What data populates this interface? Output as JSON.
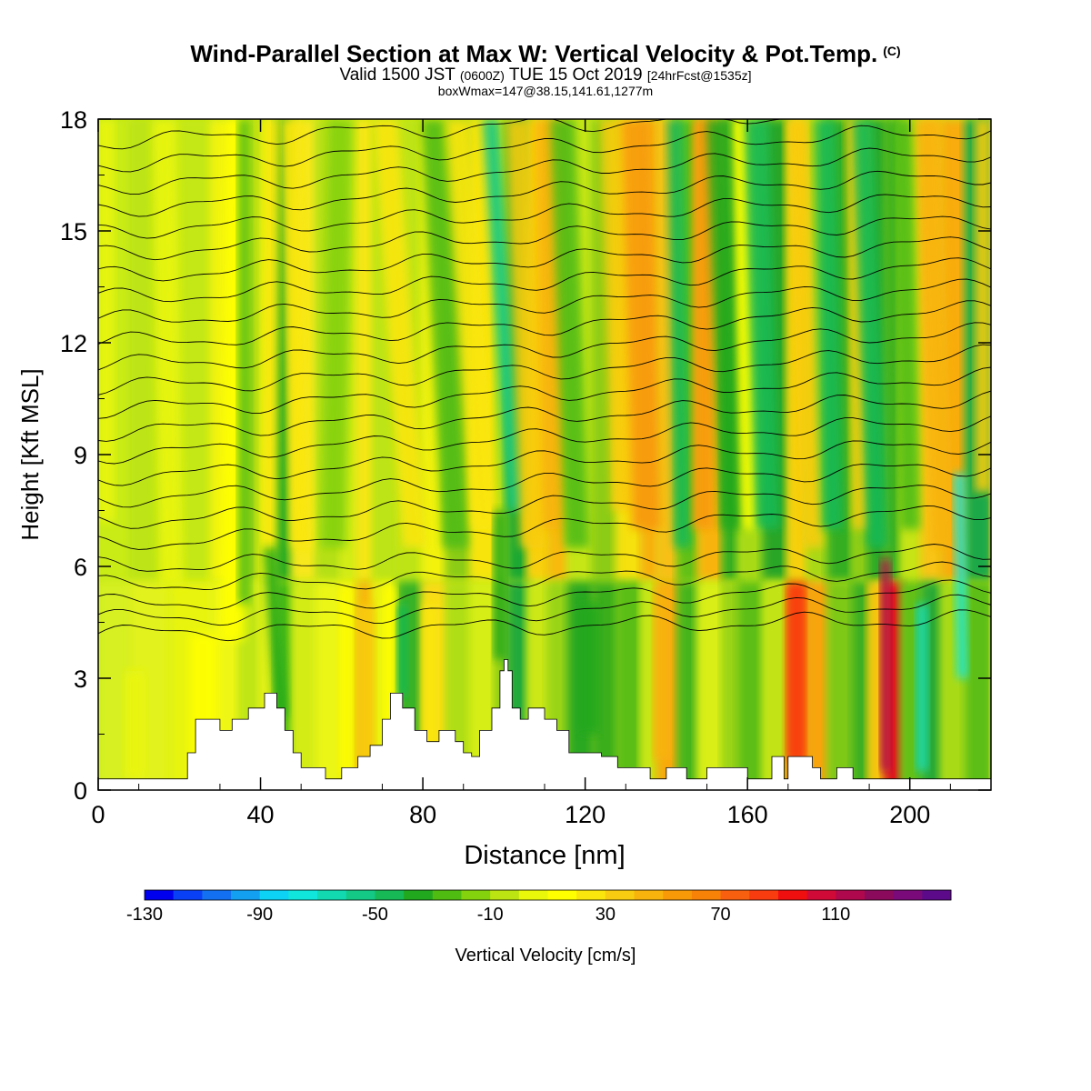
{
  "title": {
    "main": "Wind-Parallel Section at Max W: Vertical Velocity & Pot.Temp.",
    "copyright": "(C)",
    "valid_a": "Valid 1500 JST",
    "valid_b": "(0600Z)",
    "valid_c": "TUE 15 Oct 2019",
    "valid_d": "[24hrFcst@1535z]",
    "box_info": "boxWmax=147@38.15,141.61,1277m"
  },
  "chart_data": {
    "type": "heatmap",
    "xlabel": "Distance [nm]",
    "ylabel": "Height [Kft MSL]",
    "xlim": [
      0,
      220
    ],
    "ylim": [
      0,
      18
    ],
    "x_ticks": [
      "0",
      "40",
      "80",
      "120",
      "160",
      "200"
    ],
    "y_ticks": [
      "0",
      "3",
      "6",
      "9",
      "12",
      "15",
      "18"
    ],
    "colorbar": {
      "label": "Vertical Velocity [cm/s]",
      "tick_labels": [
        "-130",
        "-90",
        "-50",
        "-10",
        "30",
        "70",
        "110"
      ],
      "bins": [
        "#0000ee",
        "#0a40f5",
        "#1370f0",
        "#14a0f0",
        "#0dd2f5",
        "#10e6dc",
        "#12d9b0",
        "#14c985",
        "#16b955",
        "#22a81e",
        "#4fbc12",
        "#84d20e",
        "#bbe412",
        "#eaf60a",
        "#ffff00",
        "#fae60c",
        "#f8cc10",
        "#f8b40c",
        "#f89a08",
        "#f88208",
        "#f86010",
        "#f83c10",
        "#f00f0f",
        "#d00a37",
        "#b0084c",
        "#8c0a5c",
        "#7a0a7a",
        "#5c0a8a"
      ]
    },
    "columns": [
      {
        "x": 0,
        "bg": "#c9ec14",
        "bgs": "#d6f020"
      },
      {
        "x": 8,
        "bg": "#bce414",
        "bgs": "#e2f21a"
      },
      {
        "x": 18,
        "bg": "#c4e816",
        "bgs": "#e8f410"
      },
      {
        "x": 28,
        "bg": "#f2f408",
        "bgs": "#eef612"
      },
      {
        "x": 35,
        "bg": "#9fd412",
        "bgs": "#c0e614"
      },
      {
        "x": 40,
        "bg": "#e8f210",
        "bgs": "#e6f212"
      },
      {
        "x": 44,
        "bg": "#32ad22",
        "bgs": "#4cbc18"
      },
      {
        "x": 48,
        "bg": "#f6e81a",
        "bgs": "#d4ec16"
      },
      {
        "x": 54,
        "bg": "#b6e014",
        "bgs": "#ecf614"
      },
      {
        "x": 60,
        "bg": "#d4ec14",
        "bgs": "#f0f010"
      },
      {
        "x": 64,
        "bg": "#f6e612",
        "bgs": "#f8b80e"
      },
      {
        "x": 68,
        "bg": "#bce414",
        "bgs": "#eef410"
      },
      {
        "x": 74,
        "bg": "#bee414",
        "bgs": "#38b228"
      },
      {
        "x": 80,
        "bg": "#f2f20c",
        "bgs": "#f8dc12"
      },
      {
        "x": 86,
        "bg": "#8ccc14",
        "bgs": "#b0de14"
      },
      {
        "x": 92,
        "bg": "#f8e40e",
        "bgs": "#d6ee14"
      },
      {
        "x": 98,
        "bg": "#b8e014",
        "bgs": "#8ccc14"
      },
      {
        "x": 101,
        "bg": "#1ca832",
        "bgs": "#22aa3a"
      },
      {
        "x": 106,
        "bg": "#f8d010",
        "bgs": "#cce814"
      },
      {
        "x": 111,
        "bg": "#f8ba10",
        "bgs": "#9ad414"
      },
      {
        "x": 116,
        "bg": "#c6e614",
        "bgs": "#2aa824"
      },
      {
        "x": 122,
        "bg": "#8ccc14",
        "bgs": "#3aae1e"
      },
      {
        "x": 128,
        "bg": "#f6e010",
        "bgs": "#5abe16"
      },
      {
        "x": 134,
        "bg": "#f8b00c",
        "bgs": "#c8e614"
      },
      {
        "x": 138,
        "bg": "#f8c012",
        "bgs": "#f8a80c"
      },
      {
        "x": 143,
        "bg": "#62c018",
        "bgs": "#46b41c"
      },
      {
        "x": 148,
        "bg": "#f8b410",
        "bgs": "#d8ee14"
      },
      {
        "x": 154,
        "bg": "#34ae24",
        "bgs": "#9ad414"
      },
      {
        "x": 158,
        "bg": "#a8da14",
        "bgs": "#5cbe16"
      },
      {
        "x": 164,
        "bg": "#2aa628",
        "bgs": "#c2e414"
      },
      {
        "x": 170,
        "bg": "#f6d010",
        "bgs": "#f85a10"
      },
      {
        "x": 175,
        "bg": "#a8d814",
        "bgs": "#f8a40c"
      },
      {
        "x": 180,
        "bg": "#34ae24",
        "bgs": "#7ec814"
      },
      {
        "x": 186,
        "bg": "#8ccc14",
        "bgs": "#3aaf20"
      },
      {
        "x": 190,
        "bg": "#2aa828",
        "bgs": "#f6c410"
      },
      {
        "x": 194,
        "bg": "#3cb020",
        "bgs": "#e0141a"
      },
      {
        "x": 198,
        "bg": "#c6e414",
        "bgs": "#62c018"
      },
      {
        "x": 203,
        "bg": "#f8c412",
        "bgs": "#2aaa34"
      },
      {
        "x": 208,
        "bg": "#f8ac0c",
        "bgs": "#a8da14"
      },
      {
        "x": 214,
        "bg": "#1ea848",
        "bgs": "#5cbe16"
      },
      {
        "x": 220,
        "bg": "#f8c012",
        "bgs": "#c8e614"
      }
    ],
    "features": [
      {
        "x": 2,
        "y0": 7.2,
        "y1": 18,
        "x0": 2,
        "w": 4,
        "v": 2
      },
      {
        "x": 9,
        "y0": 0.3,
        "y1": 3.2,
        "x0": 9,
        "w": 5,
        "v": 9
      },
      {
        "x": 18,
        "y0": 5.5,
        "y1": 18,
        "x0": 16,
        "w": 6,
        "v": 1
      },
      {
        "x": 26,
        "y0": 0.3,
        "y1": 4.2,
        "x0": 26,
        "w": 7,
        "v": 11
      },
      {
        "x": 33,
        "y0": 4.0,
        "y1": 18,
        "x0": 35,
        "w": 6,
        "v": 15
      },
      {
        "x": 36,
        "y0": 5.0,
        "y1": 18,
        "x0": 36,
        "w": 3,
        "v": -22
      },
      {
        "x": 42,
        "y0": 6.5,
        "y1": 18,
        "x0": 43,
        "w": 3,
        "v": 24
      },
      {
        "x": 45,
        "y0": 2.0,
        "y1": 6.5,
        "x0": 42,
        "w": 3,
        "v": -40
      },
      {
        "x": 50,
        "y0": 6.5,
        "y1": 18,
        "x0": 47,
        "w": 5,
        "v": 26
      },
      {
        "x": 58,
        "y0": 6.5,
        "y1": 18,
        "x0": 60,
        "w": 6,
        "v": -18
      },
      {
        "x": 61,
        "y0": 0.4,
        "y1": 5.5,
        "x0": 61,
        "w": 3,
        "v": 18
      },
      {
        "x": 66,
        "y0": 0.5,
        "y1": 5.0,
        "x0": 66,
        "w": 4,
        "v": 34
      },
      {
        "x": 72,
        "y0": 0.5,
        "y1": 5.5,
        "x0": 72,
        "w": 3,
        "v": 16
      },
      {
        "x": 75,
        "y0": 2.5,
        "y1": 5.0,
        "x0": 75,
        "w": 2.5,
        "v": -44
      },
      {
        "x": 78,
        "y0": 6.5,
        "y1": 18,
        "x0": 70,
        "w": 6,
        "v": 20
      },
      {
        "x": 82,
        "y0": 0.6,
        "y1": 5.0,
        "x0": 82,
        "w": 4,
        "v": 24
      },
      {
        "x": 88,
        "y0": 6.5,
        "y1": 18,
        "x0": 82,
        "w": 6,
        "v": -22
      },
      {
        "x": 95,
        "y0": 7.0,
        "y1": 18,
        "x0": 88,
        "w": 6,
        "v": 26
      },
      {
        "x": 99,
        "y0": 3.5,
        "y1": 7.5,
        "x0": 99,
        "w": 3,
        "v": -36
      },
      {
        "x": 103,
        "y0": 7.5,
        "y1": 18,
        "x0": 96,
        "w": 4,
        "v": -55
      },
      {
        "x": 107,
        "y0": 6.5,
        "y1": 18,
        "x0": 103,
        "w": 6,
        "v": 32
      },
      {
        "x": 112,
        "y0": 7.0,
        "y1": 18,
        "x0": 110,
        "w": 5,
        "v": 46
      },
      {
        "x": 118,
        "y0": 6.5,
        "y1": 18,
        "x0": 114,
        "w": 6,
        "v": -24
      },
      {
        "x": 121,
        "y0": 1.5,
        "y1": 5.0,
        "x0": 121,
        "w": 5,
        "v": -40
      },
      {
        "x": 129,
        "y0": 7.5,
        "y1": 18,
        "x0": 126,
        "w": 5,
        "v": 30
      },
      {
        "x": 135,
        "y0": 7.0,
        "y1": 18,
        "x0": 132,
        "w": 7,
        "v": 52
      },
      {
        "x": 139,
        "y0": 0.8,
        "y1": 5.5,
        "x0": 139,
        "w": 4,
        "v": 42
      },
      {
        "x": 144,
        "y0": 6.5,
        "y1": 18,
        "x0": 142,
        "w": 4,
        "v": -50
      },
      {
        "x": 149,
        "y0": 7.0,
        "y1": 18,
        "x0": 149,
        "w": 5,
        "v": 50
      },
      {
        "x": 156,
        "y0": 7.0,
        "y1": 18,
        "x0": 152,
        "w": 5,
        "v": -40
      },
      {
        "x": 161,
        "y0": 7.0,
        "y1": 18,
        "x0": 158,
        "w": 4,
        "v": 18
      },
      {
        "x": 165,
        "y0": 7.0,
        "y1": 18,
        "x0": 162,
        "w": 6,
        "v": -46
      },
      {
        "x": 172,
        "y0": 0.8,
        "y1": 5.5,
        "x0": 172,
        "w": 4,
        "v": 88
      },
      {
        "x": 176,
        "y0": 6.5,
        "y1": 18,
        "x0": 172,
        "w": 5,
        "v": 34
      },
      {
        "x": 181,
        "y0": 7.0,
        "y1": 18,
        "x0": 179,
        "w": 5,
        "v": -46
      },
      {
        "x": 188,
        "y0": 7.0,
        "y1": 18,
        "x0": 186,
        "w": 4,
        "v": 32
      },
      {
        "x": 192,
        "y0": 6.5,
        "y1": 18,
        "x0": 188,
        "w": 5,
        "v": -50
      },
      {
        "x": 194,
        "y0": 0.5,
        "y1": 6.2,
        "x0": 194,
        "w": 2.5,
        "v": 116
      },
      {
        "x": 200,
        "y0": 7.0,
        "y1": 18,
        "x0": 198,
        "w": 5,
        "v": -26
      },
      {
        "x": 203,
        "y0": 0.5,
        "y1": 5.0,
        "x0": 203,
        "w": 3,
        "v": -62
      },
      {
        "x": 208,
        "y0": 6.5,
        "y1": 18,
        "x0": 204,
        "w": 6,
        "v": 42
      },
      {
        "x": 213,
        "y0": 3.0,
        "y1": 8.5,
        "x0": 212,
        "w": 2.5,
        "v": -72
      },
      {
        "x": 218,
        "y0": 8.0,
        "y1": 18,
        "x0": 218,
        "w": 4,
        "v": 34
      }
    ],
    "terrain": [
      [
        0,
        0.3
      ],
      [
        22,
        0.3
      ],
      [
        22,
        1.0
      ],
      [
        24,
        1.0
      ],
      [
        24,
        1.9
      ],
      [
        30,
        1.9
      ],
      [
        30,
        1.6
      ],
      [
        33,
        1.6
      ],
      [
        33,
        1.9
      ],
      [
        37,
        1.9
      ],
      [
        37,
        2.2
      ],
      [
        41,
        2.2
      ],
      [
        41,
        2.6
      ],
      [
        44,
        2.6
      ],
      [
        44,
        2.2
      ],
      [
        46,
        2.2
      ],
      [
        46,
        1.6
      ],
      [
        48,
        1.6
      ],
      [
        48,
        1.0
      ],
      [
        50,
        1.0
      ],
      [
        50,
        0.6
      ],
      [
        52,
        0.6
      ],
      [
        52,
        0.6
      ],
      [
        56,
        0.6
      ],
      [
        56,
        0.3
      ],
      [
        60,
        0.3
      ],
      [
        60,
        0.6
      ],
      [
        64,
        0.6
      ],
      [
        64,
        0.9
      ],
      [
        67,
        0.9
      ],
      [
        67,
        1.2
      ],
      [
        70,
        1.2
      ],
      [
        70,
        1.9
      ],
      [
        72,
        1.9
      ],
      [
        72,
        2.6
      ],
      [
        75,
        2.6
      ],
      [
        75,
        2.2
      ],
      [
        78,
        2.2
      ],
      [
        78,
        1.6
      ],
      [
        81,
        1.6
      ],
      [
        81,
        1.3
      ],
      [
        84,
        1.3
      ],
      [
        84,
        1.6
      ],
      [
        88,
        1.6
      ],
      [
        88,
        1.3
      ],
      [
        90,
        1.3
      ],
      [
        90,
        1.0
      ],
      [
        92,
        1.0
      ],
      [
        92,
        0.9
      ],
      [
        94,
        0.9
      ],
      [
        94,
        1.6
      ],
      [
        97,
        1.6
      ],
      [
        97,
        2.2
      ],
      [
        99,
        2.2
      ],
      [
        99,
        3.2
      ],
      [
        100,
        3.2
      ],
      [
        100,
        3.5
      ],
      [
        101,
        3.5
      ],
      [
        101,
        3.2
      ],
      [
        102,
        3.2
      ],
      [
        102,
        2.2
      ],
      [
        104,
        2.2
      ],
      [
        104,
        1.9
      ],
      [
        106,
        1.9
      ],
      [
        106,
        2.2
      ],
      [
        110,
        2.2
      ],
      [
        110,
        1.9
      ],
      [
        113,
        1.9
      ],
      [
        113,
        1.6
      ],
      [
        116,
        1.6
      ],
      [
        116,
        1.0
      ],
      [
        120,
        1.0
      ],
      [
        120,
        1.0
      ],
      [
        124,
        1.0
      ],
      [
        124,
        0.9
      ],
      [
        128,
        0.9
      ],
      [
        128,
        0.6
      ],
      [
        136,
        0.6
      ],
      [
        136,
        0.3
      ],
      [
        140,
        0.3
      ],
      [
        140,
        0.6
      ],
      [
        145,
        0.6
      ],
      [
        145,
        0.3
      ],
      [
        150,
        0.3
      ],
      [
        150,
        0.6
      ],
      [
        160,
        0.6
      ],
      [
        160,
        0.3
      ],
      [
        166,
        0.3
      ],
      [
        166,
        0.9
      ],
      [
        169,
        0.9
      ],
      [
        169,
        0.3
      ],
      [
        170,
        0.3
      ],
      [
        170,
        0.9
      ],
      [
        176,
        0.9
      ],
      [
        176,
        0.6
      ],
      [
        178,
        0.6
      ],
      [
        178,
        0.3
      ],
      [
        182,
        0.3
      ],
      [
        182,
        0.6
      ],
      [
        186,
        0.6
      ],
      [
        186,
        0.3
      ],
      [
        220,
        0.3
      ],
      [
        220,
        0
      ]
    ],
    "theta_contours": [
      [
        0,
        4.2,
        8
      ],
      [
        0,
        4.6,
        8
      ],
      [
        0,
        5.0,
        8
      ],
      [
        0,
        5.5,
        8
      ],
      [
        0,
        6.0,
        8
      ],
      [
        0,
        6.6,
        8
      ],
      [
        0,
        7.2,
        8
      ],
      [
        0,
        7.8,
        8
      ],
      [
        0,
        8.4,
        8
      ],
      [
        0,
        9.0,
        8
      ],
      [
        0,
        9.6,
        8
      ],
      [
        0,
        10.2,
        8
      ],
      [
        0,
        10.8,
        8
      ],
      [
        0,
        11.4,
        8
      ],
      [
        0,
        12.0,
        8
      ],
      [
        0,
        12.6,
        8
      ],
      [
        0,
        13.2,
        8
      ],
      [
        0,
        13.8,
        8
      ],
      [
        0,
        14.4,
        8
      ],
      [
        0,
        15.0,
        8
      ],
      [
        0,
        15.6,
        8
      ],
      [
        0,
        16.2,
        8
      ],
      [
        0,
        16.8,
        8
      ],
      [
        0,
        17.4,
        8
      ]
    ]
  }
}
